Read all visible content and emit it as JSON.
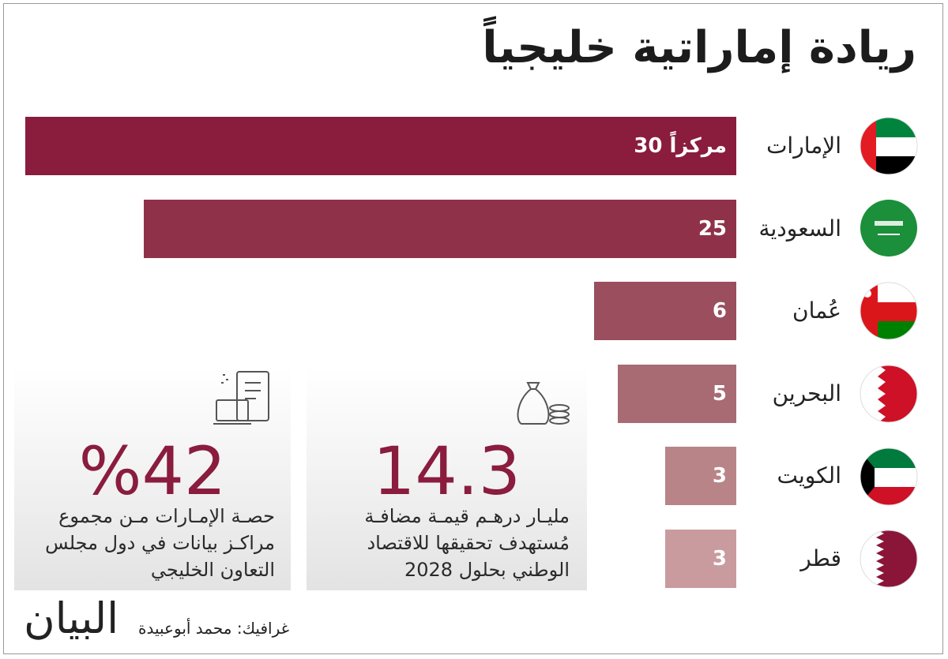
{
  "title": "ريادة إماراتية خليجياً",
  "chart_data": {
    "type": "bar",
    "orientation": "horizontal",
    "categories": [
      "الإمارات",
      "السعودية",
      "عُمان",
      "البحرين",
      "الكويت",
      "قطر"
    ],
    "values": [
      30,
      25,
      6,
      5,
      3,
      3
    ],
    "value_labels": [
      "30 مركزاً",
      "25",
      "6",
      "5",
      "3",
      "3"
    ],
    "colors": [
      "#8a1c3e",
      "#8f3249",
      "#9a4e5e",
      "#a86a73",
      "#b88488",
      "#c99b9e"
    ]
  },
  "stats": [
    {
      "value": "14.3",
      "lines": [
        "مليـار درهـم قيمـة مضافـة",
        "مُستهدف تحقيقها للاقتصاد",
        "الوطني بحلول 2028"
      ]
    },
    {
      "value": "%42",
      "lines": [
        "حصـة الإمـارات مـن مجموع",
        "مراكـز بيانات في دول مجلس",
        "التعاون الخليجي"
      ]
    }
  ],
  "credit": "غرافيك: محمد أبوعبيدة",
  "logo": "البيان"
}
